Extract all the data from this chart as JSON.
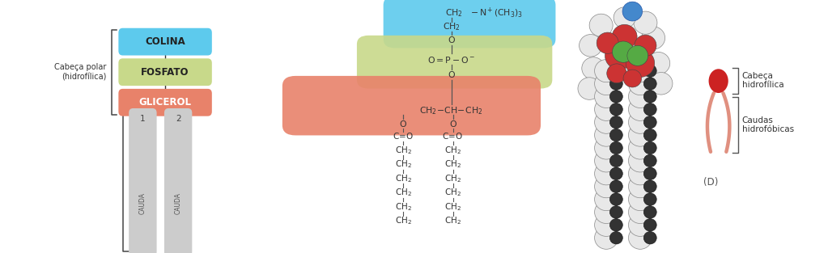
{
  "bg_color": "#ffffff",
  "left_panel": {
    "labels": [
      "COLINA",
      "FOSFATO",
      "GLICEROL"
    ],
    "colors": [
      "#5dcaed",
      "#c8d98a",
      "#e8826a"
    ],
    "tail_color": "#cccccc",
    "left_label": "Cabeça polar\n(hidrofílica)"
  },
  "chem": {
    "colina_color": "#5dcaed",
    "fosfato_color": "#c8d98a",
    "glicerol_color": "#e8826a",
    "line_color": "#555555",
    "text_color": "#333333"
  },
  "mol_model": {
    "white_ball_color": "#e8e8e8",
    "white_ball_edge": "#888888",
    "black_ball_color": "#333333",
    "red_ball_color": "#cc3333",
    "green_ball_color": "#55aa44",
    "blue_ball_color": "#4488cc"
  },
  "legend": {
    "head_color": "#cc2222",
    "tail_color": "#e09080",
    "head_label": "Cabeça\nhidrofílica",
    "tail_label": "Caudas\nhidrofóbicas",
    "d_label": "(D)"
  }
}
